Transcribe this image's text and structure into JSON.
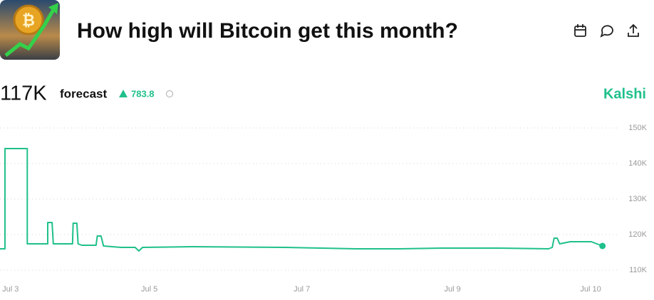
{
  "header": {
    "title": "How high will Bitcoin get this month?"
  },
  "forecast": {
    "value": "117K",
    "label": "forecast",
    "change": "783.8",
    "brand": "Kalshi"
  },
  "chart_data": {
    "type": "line",
    "x": [
      0,
      0.8,
      0.8,
      4.4,
      4.4,
      7.7,
      7.7,
      8.4,
      8.6,
      11.7,
      11.8,
      12.4,
      12.6,
      13.2,
      15.5,
      15.7,
      16.3,
      16.7,
      19.5,
      21.8,
      22.4,
      23.0,
      31,
      46,
      57.5,
      64.4,
      71.3,
      80.5,
      88.5,
      89.1,
      89.4,
      89.9,
      90.3,
      92,
      95.4,
      97.2
    ],
    "series": [
      {
        "color": "#1fc08b",
        "values": [
          116000,
          116000,
          144200,
          144200,
          117400,
          117400,
          123400,
          123400,
          117400,
          117400,
          123200,
          123200,
          117400,
          117000,
          117000,
          119600,
          119600,
          116800,
          116400,
          116400,
          115400,
          116400,
          116600,
          116400,
          116000,
          116000,
          116200,
          116200,
          116000,
          116400,
          119000,
          119000,
          117400,
          118000,
          118000,
          116800
        ]
      }
    ],
    "xlim": [
      0,
      100
    ],
    "xticks": [
      {
        "value": 1.7,
        "label": "Jul 3"
      },
      {
        "value": 24.1,
        "label": "Jul 5"
      },
      {
        "value": 48.7,
        "label": "Jul 7"
      },
      {
        "value": 73.0,
        "label": "Jul 9"
      },
      {
        "value": 95.3,
        "label": "Jul 10"
      }
    ],
    "ylim": [
      110000,
      150000
    ],
    "yticks": [
      {
        "value": 110000,
        "label": "110K"
      },
      {
        "value": 120000,
        "label": "120K"
      },
      {
        "value": 130000,
        "label": "130K"
      },
      {
        "value": 140000,
        "label": "140K"
      },
      {
        "value": 150000,
        "label": "150K"
      }
    ],
    "grid": true
  }
}
